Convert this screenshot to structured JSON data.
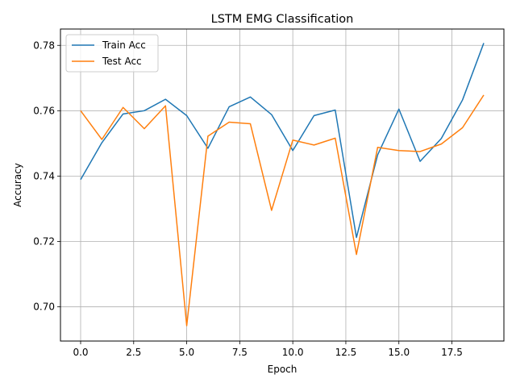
{
  "chart_data": {
    "type": "line",
    "title": "LSTM EMG Classification",
    "xlabel": "Epoch",
    "ylabel": "Accuracy",
    "xlim": [
      -0.95,
      19.95
    ],
    "ylim": [
      0.6895,
      0.785
    ],
    "grid": true,
    "legend_position": "upper-left",
    "x_ticks": [
      0.0,
      2.5,
      5.0,
      7.5,
      10.0,
      12.5,
      15.0,
      17.5
    ],
    "x_tick_labels": [
      "0.0",
      "2.5",
      "5.0",
      "7.5",
      "10.0",
      "12.5",
      "15.0",
      "17.5"
    ],
    "y_ticks": [
      0.7,
      0.72,
      0.74,
      0.76,
      0.78
    ],
    "y_tick_labels": [
      "0.70",
      "0.72",
      "0.74",
      "0.76",
      "0.78"
    ],
    "x": [
      0,
      1,
      2,
      3,
      4,
      5,
      6,
      7,
      8,
      9,
      10,
      11,
      12,
      13,
      14,
      15,
      16,
      17,
      18,
      19
    ],
    "series": [
      {
        "name": "Train Acc",
        "color": "#1f77b4",
        "values": [
          0.7389,
          0.7502,
          0.759,
          0.76,
          0.7635,
          0.7585,
          0.7485,
          0.7612,
          0.7642,
          0.7588,
          0.7478,
          0.7585,
          0.7602,
          0.7212,
          0.7465,
          0.7605,
          0.7445,
          0.7515,
          0.7633,
          0.7807
        ]
      },
      {
        "name": "Test Acc",
        "color": "#ff7f0e",
        "values": [
          0.76,
          0.7512,
          0.761,
          0.7545,
          0.7615,
          0.6942,
          0.7522,
          0.7565,
          0.756,
          0.7295,
          0.751,
          0.7495,
          0.7516,
          0.716,
          0.7488,
          0.7478,
          0.7475,
          0.7498,
          0.7548,
          0.7648
        ]
      }
    ]
  }
}
